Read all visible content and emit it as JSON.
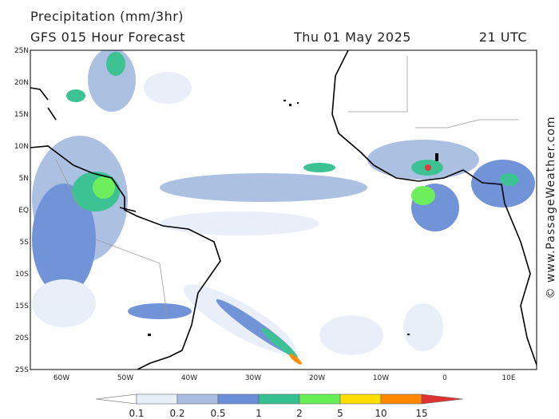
{
  "header": {
    "title": "Precipitation (mm/3hr)",
    "subtitle": "GFS 015 Hour Forecast",
    "date": "Thu 01 May 2025",
    "time": "21 UTC"
  },
  "map": {
    "lat_labels": [
      "25N",
      "20N",
      "15N",
      "10N",
      "5N",
      "EQ",
      "5S",
      "10S",
      "15S",
      "20S",
      "25S"
    ],
    "lon_labels": [
      "60W",
      "50W",
      "40W",
      "30W",
      "20W",
      "10W",
      "0",
      "10E"
    ]
  },
  "legend": {
    "labels": [
      "0.1",
      "0.2",
      "0.5",
      "1",
      "2",
      "5",
      "10",
      "15"
    ]
  },
  "watermark": "© www.PassageWeather.com"
}
